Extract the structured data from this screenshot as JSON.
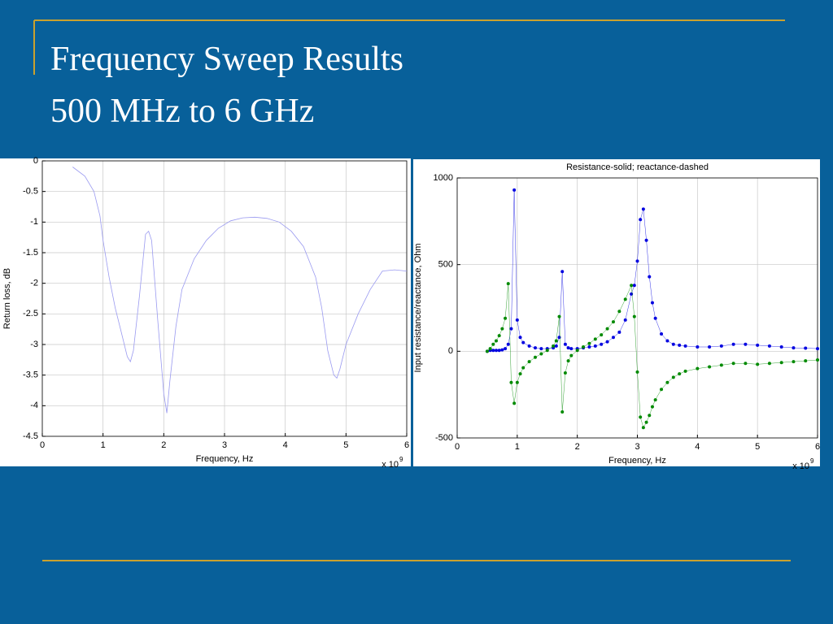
{
  "header": {
    "title_line1": "Frequency Sweep Results",
    "title_line2": "500 MHz to 6 GHz"
  },
  "chart_data": [
    {
      "type": "line",
      "xlabel": "Frequency, Hz",
      "ylabel": "Return loss, dB",
      "x_multiplier": "x 10",
      "x_multiplier_exponent": "9",
      "xlim": [
        0,
        6
      ],
      "xticks": [
        0,
        1,
        2,
        3,
        4,
        5,
        6
      ],
      "ylim": [
        -4.5,
        0
      ],
      "yticks": [
        0,
        -0.5,
        -1,
        -1.5,
        -2,
        -2.5,
        -3,
        -3.5,
        -4,
        -4.5
      ],
      "grid": true,
      "series": [
        {
          "name": "Return loss",
          "color": "#9a9af0",
          "markers": false,
          "x": [
            0.5,
            0.7,
            0.85,
            0.95,
            1.0,
            1.1,
            1.2,
            1.3,
            1.4,
            1.45,
            1.5,
            1.6,
            1.7,
            1.75,
            1.8,
            1.9,
            2.0,
            2.05,
            2.1,
            2.2,
            2.3,
            2.5,
            2.7,
            2.9,
            3.1,
            3.3,
            3.5,
            3.7,
            3.9,
            4.1,
            4.3,
            4.5,
            4.6,
            4.7,
            4.8,
            4.85,
            4.9,
            5.0,
            5.2,
            5.4,
            5.6,
            5.8,
            6.0
          ],
          "values": [
            -0.1,
            -0.25,
            -0.5,
            -0.9,
            -1.3,
            -1.9,
            -2.4,
            -2.8,
            -3.2,
            -3.28,
            -3.1,
            -2.2,
            -1.2,
            -1.15,
            -1.3,
            -2.6,
            -3.8,
            -4.12,
            -3.6,
            -2.7,
            -2.1,
            -1.6,
            -1.3,
            -1.1,
            -0.98,
            -0.93,
            -0.92,
            -0.94,
            -1.0,
            -1.15,
            -1.4,
            -1.9,
            -2.4,
            -3.1,
            -3.5,
            -3.55,
            -3.4,
            -3.0,
            -2.5,
            -2.1,
            -1.8,
            -1.78,
            -1.8
          ]
        }
      ]
    },
    {
      "type": "line",
      "title": "Resistance-solid; reactance-dashed",
      "xlabel": "Frequency, Hz",
      "ylabel": "Input  resistance/reactance, Ohm",
      "x_multiplier": "x 10",
      "x_multiplier_exponent": "9",
      "xlim": [
        0,
        6
      ],
      "xticks": [
        0,
        1,
        2,
        3,
        4,
        5,
        6
      ],
      "ylim": [
        -500,
        1000
      ],
      "yticks": [
        -500,
        0,
        500,
        1000
      ],
      "grid": true,
      "series": [
        {
          "name": "Resistance",
          "color": "#0000e0",
          "markers": true,
          "x": [
            0.5,
            0.55,
            0.6,
            0.65,
            0.7,
            0.75,
            0.8,
            0.85,
            0.9,
            0.95,
            1.0,
            1.05,
            1.1,
            1.2,
            1.3,
            1.4,
            1.5,
            1.6,
            1.65,
            1.7,
            1.75,
            1.8,
            1.85,
            1.9,
            2.0,
            2.1,
            2.2,
            2.3,
            2.4,
            2.5,
            2.6,
            2.7,
            2.8,
            2.9,
            2.95,
            3.0,
            3.05,
            3.1,
            3.15,
            3.2,
            3.25,
            3.3,
            3.4,
            3.5,
            3.6,
            3.7,
            3.8,
            4.0,
            4.2,
            4.4,
            4.6,
            4.8,
            5.0,
            5.2,
            5.4,
            5.6,
            5.8,
            6.0
          ],
          "values": [
            0,
            5,
            5,
            5,
            5,
            8,
            15,
            40,
            130,
            930,
            180,
            80,
            50,
            30,
            20,
            15,
            15,
            20,
            30,
            80,
            460,
            40,
            20,
            15,
            15,
            20,
            25,
            30,
            40,
            55,
            80,
            110,
            180,
            330,
            380,
            520,
            760,
            820,
            640,
            430,
            280,
            190,
            100,
            60,
            40,
            35,
            30,
            25,
            25,
            30,
            40,
            40,
            35,
            30,
            25,
            20,
            18,
            15
          ]
        },
        {
          "name": "Reactance",
          "color": "#008a00",
          "markers": true,
          "x": [
            0.5,
            0.55,
            0.6,
            0.65,
            0.7,
            0.75,
            0.8,
            0.85,
            0.9,
            0.95,
            1.0,
            1.05,
            1.1,
            1.2,
            1.3,
            1.4,
            1.5,
            1.6,
            1.65,
            1.7,
            1.75,
            1.8,
            1.85,
            1.9,
            2.0,
            2.1,
            2.2,
            2.3,
            2.4,
            2.5,
            2.6,
            2.7,
            2.8,
            2.9,
            2.95,
            3.0,
            3.05,
            3.1,
            3.15,
            3.2,
            3.25,
            3.3,
            3.4,
            3.5,
            3.6,
            3.7,
            3.8,
            4.0,
            4.2,
            4.4,
            4.6,
            4.8,
            5.0,
            5.2,
            5.4,
            5.6,
            5.8,
            6.0
          ],
          "values": [
            0,
            15,
            40,
            60,
            90,
            130,
            190,
            390,
            -180,
            -300,
            -180,
            -130,
            -95,
            -60,
            -35,
            -15,
            5,
            30,
            60,
            200,
            -350,
            -125,
            -55,
            -25,
            5,
            25,
            45,
            70,
            95,
            130,
            170,
            230,
            300,
            380,
            200,
            -120,
            -380,
            -440,
            -410,
            -370,
            -320,
            -280,
            -220,
            -180,
            -150,
            -130,
            -115,
            -100,
            -90,
            -80,
            -70,
            -70,
            -75,
            -70,
            -65,
            -60,
            -55,
            -50
          ]
        }
      ]
    }
  ]
}
